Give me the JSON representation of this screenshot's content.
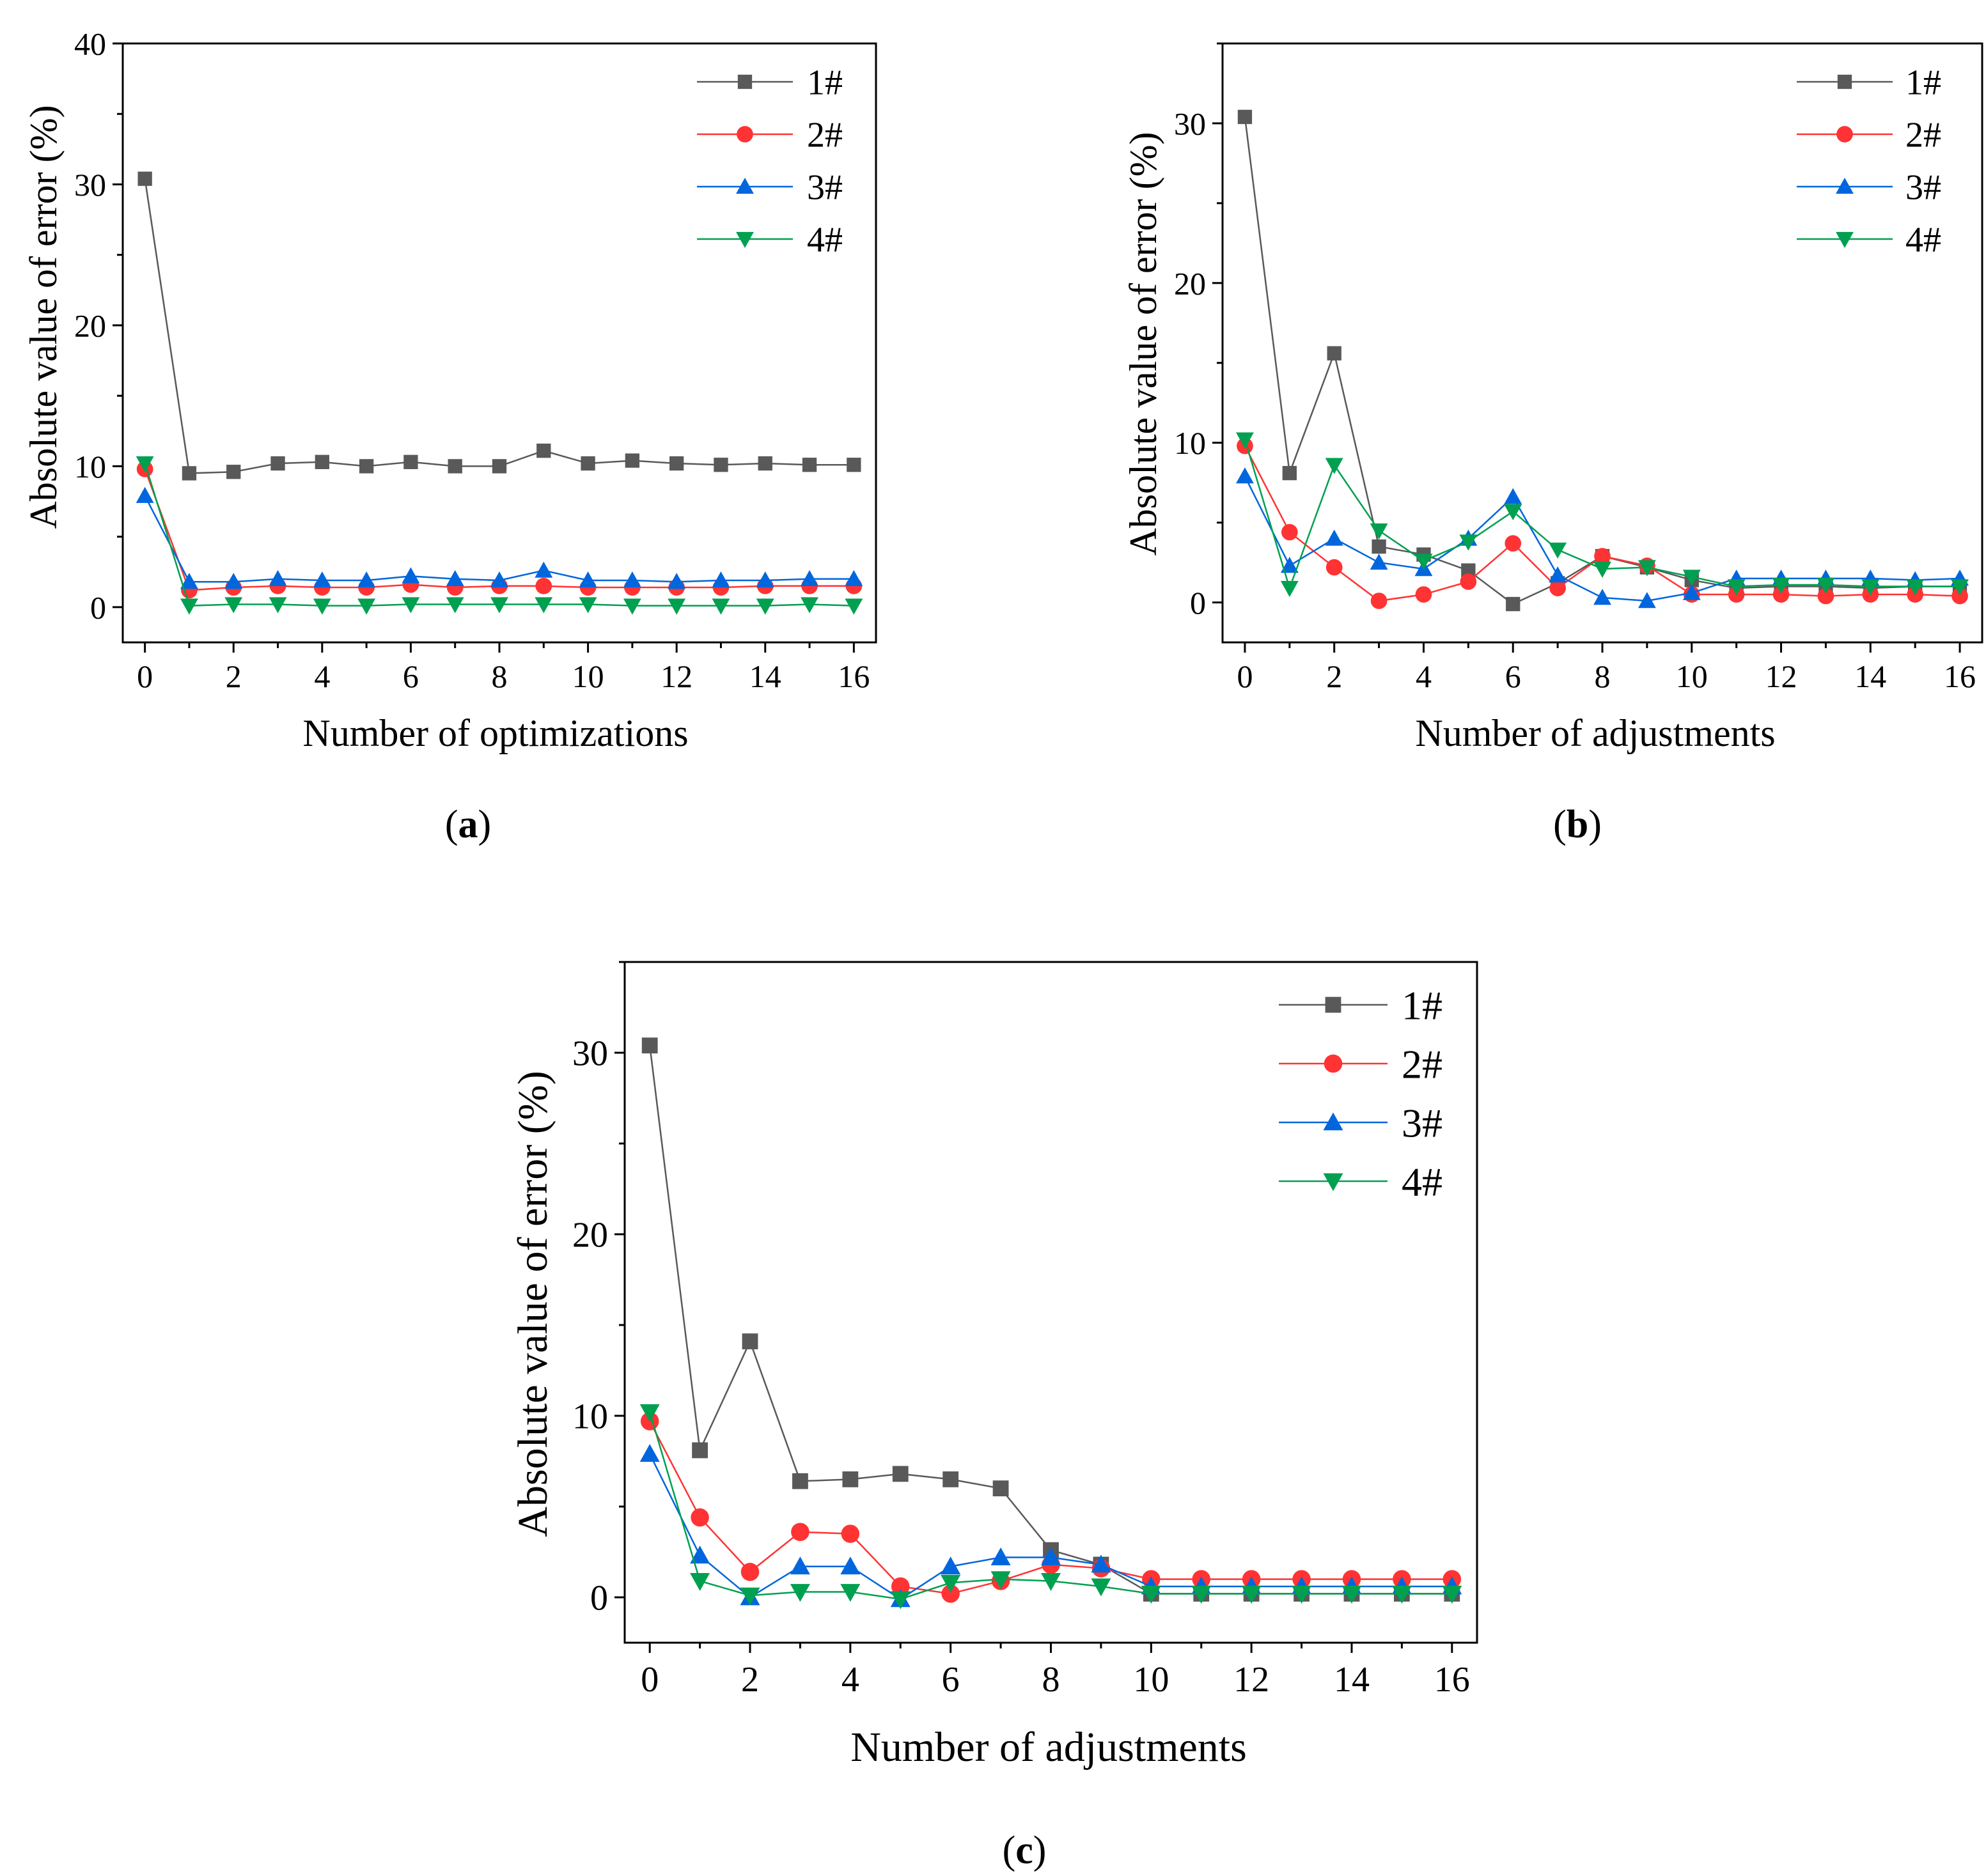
{
  "figure": {
    "series_styles": [
      {
        "name": "1#",
        "color": "#595959",
        "marker": "square"
      },
      {
        "name": "2#",
        "color": "#ff3333",
        "marker": "circle"
      },
      {
        "name": "3#",
        "color": "#0066dd",
        "marker": "triangle-up"
      },
      {
        "name": "4#",
        "color": "#00a050",
        "marker": "triangle-down"
      }
    ]
  },
  "chart_data": [
    {
      "panel": "a",
      "type": "line",
      "xlabel": "Number of optimizations",
      "ylabel": "Absolute value of error (%)",
      "xlim": [
        -0.5,
        16.5
      ],
      "ylim": [
        -2.5,
        40
      ],
      "xticks": [
        0,
        2,
        4,
        6,
        8,
        10,
        12,
        14,
        16
      ],
      "yticks": [
        0,
        10,
        20,
        30,
        40
      ],
      "legend": "top-right",
      "x": [
        0,
        1,
        2,
        3,
        4,
        5,
        6,
        7,
        8,
        9,
        10,
        11,
        12,
        13,
        14,
        15,
        16
      ],
      "series": [
        {
          "name": "1#",
          "values": [
            30.4,
            9.5,
            9.6,
            10.2,
            10.3,
            10.0,
            10.3,
            10.0,
            10.0,
            11.1,
            10.2,
            10.4,
            10.2,
            10.1,
            10.2,
            10.1,
            10.1
          ]
        },
        {
          "name": "2#",
          "values": [
            9.8,
            1.2,
            1.4,
            1.5,
            1.4,
            1.4,
            1.6,
            1.4,
            1.5,
            1.5,
            1.4,
            1.4,
            1.4,
            1.4,
            1.5,
            1.5,
            1.5
          ]
        },
        {
          "name": "3#",
          "values": [
            7.9,
            1.8,
            1.8,
            2.0,
            1.9,
            1.9,
            2.2,
            2.0,
            1.9,
            2.6,
            1.9,
            1.9,
            1.8,
            1.9,
            1.9,
            2.0,
            2.0
          ]
        },
        {
          "name": "4#",
          "values": [
            10.2,
            0.1,
            0.2,
            0.2,
            0.1,
            0.1,
            0.2,
            0.2,
            0.2,
            0.2,
            0.2,
            0.1,
            0.1,
            0.1,
            0.1,
            0.2,
            0.1
          ]
        }
      ]
    },
    {
      "panel": "b",
      "type": "line",
      "xlabel": "Number of adjustments",
      "ylabel": "Absolute value of error (%)",
      "xlim": [
        -0.5,
        16.5
      ],
      "ylim": [
        -2.5,
        35
      ],
      "xticks": [
        0,
        2,
        4,
        6,
        8,
        10,
        12,
        14,
        16
      ],
      "yticks": [
        0,
        10,
        20,
        30
      ],
      "legend": "top-right",
      "x": [
        0,
        1,
        2,
        3,
        4,
        5,
        6,
        7,
        8,
        9,
        10,
        11,
        12,
        13,
        14,
        15,
        16
      ],
      "series": [
        {
          "name": "1#",
          "values": [
            30.4,
            8.1,
            15.6,
            3.5,
            3.0,
            2.0,
            -0.1,
            1.2,
            2.9,
            2.2,
            1.4,
            0.9,
            1.0,
            1.0,
            0.9,
            1.0,
            1.0
          ]
        },
        {
          "name": "2#",
          "values": [
            9.8,
            4.4,
            2.2,
            0.1,
            0.5,
            1.3,
            3.7,
            0.9,
            2.9,
            2.3,
            0.5,
            0.5,
            0.5,
            0.4,
            0.5,
            0.5,
            0.4
          ]
        },
        {
          "name": "3#",
          "values": [
            7.9,
            2.3,
            4.0,
            2.5,
            2.1,
            4.0,
            6.6,
            1.7,
            0.3,
            0.1,
            0.6,
            1.5,
            1.5,
            1.5,
            1.5,
            1.4,
            1.5
          ]
        },
        {
          "name": "4#",
          "values": [
            10.2,
            0.9,
            8.6,
            4.5,
            2.6,
            3.8,
            5.7,
            3.3,
            2.1,
            2.2,
            1.6,
            1.0,
            1.1,
            1.1,
            1.0,
            1.0,
            1.0
          ]
        }
      ]
    },
    {
      "panel": "c",
      "type": "line",
      "xlabel": "Number of adjustments",
      "ylabel": "Absolute value of error (%)",
      "xlim": [
        -0.5,
        16.5
      ],
      "ylim": [
        -2.5,
        35
      ],
      "xticks": [
        0,
        2,
        4,
        6,
        8,
        10,
        12,
        14,
        16
      ],
      "yticks": [
        0,
        10,
        20,
        30
      ],
      "legend": "top-right",
      "x": [
        0,
        1,
        2,
        3,
        4,
        5,
        6,
        7,
        8,
        9,
        10,
        11,
        12,
        13,
        14,
        15,
        16
      ],
      "series": [
        {
          "name": "1#",
          "values": [
            30.4,
            8.1,
            14.1,
            6.4,
            6.5,
            6.8,
            6.5,
            6.0,
            2.6,
            1.8,
            0.2,
            0.2,
            0.2,
            0.2,
            0.2,
            0.2,
            0.2
          ]
        },
        {
          "name": "2#",
          "values": [
            9.7,
            4.4,
            1.4,
            3.6,
            3.5,
            0.6,
            0.2,
            0.9,
            1.8,
            1.6,
            1.0,
            1.0,
            1.0,
            1.0,
            1.0,
            1.0,
            1.0
          ]
        },
        {
          "name": "3#",
          "values": [
            7.9,
            2.3,
            0.0,
            1.7,
            1.7,
            -0.1,
            1.7,
            2.2,
            2.2,
            1.8,
            0.6,
            0.6,
            0.6,
            0.6,
            0.6,
            0.6,
            0.6
          ]
        },
        {
          "name": "4#",
          "values": [
            10.2,
            0.9,
            0.1,
            0.3,
            0.3,
            -0.1,
            0.8,
            1.0,
            0.9,
            0.6,
            0.2,
            0.2,
            0.2,
            0.2,
            0.2,
            0.2,
            0.2
          ]
        }
      ]
    }
  ],
  "panel_labels": {
    "a": {
      "open": "(",
      "letter": "a",
      "close": ")"
    },
    "b": {
      "open": "(",
      "letter": "b",
      "close": ")"
    },
    "c": {
      "open": "(",
      "letter": "c",
      "close": ")"
    }
  }
}
